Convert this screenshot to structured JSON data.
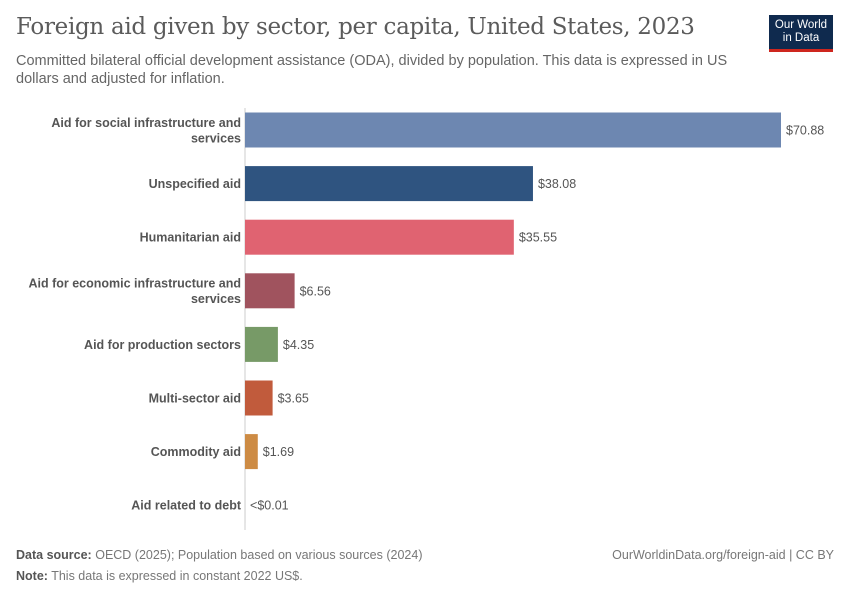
{
  "title": "Foreign aid given by sector, per capita, United States, 2023",
  "subtitle": "Committed bilateral official development assistance (ODA), divided by population. This data is expressed in US dollars and adjusted for inflation.",
  "logo": {
    "line1": "Our World",
    "line2": "in Data",
    "bg": "#0f2a4e",
    "accent": "#ce261e"
  },
  "footer": {
    "source_label": "Data source:",
    "source_text": "OECD (2025); Population based on various sources (2024)",
    "note_label": "Note:",
    "note_text": "This data is expressed in constant 2022 US$.",
    "url": "OurWorldinData.org/foreign-aid | CC BY"
  },
  "chart_data": {
    "type": "bar",
    "orientation": "horizontal",
    "categories": [
      [
        "Aid for social infrastructure and",
        "services"
      ],
      [
        "Unspecified aid"
      ],
      [
        "Humanitarian aid"
      ],
      [
        "Aid for economic infrastructure and",
        "services"
      ],
      [
        "Aid for production sectors"
      ],
      [
        "Multi-sector aid"
      ],
      [
        "Commodity aid"
      ],
      [
        "Aid related to debt"
      ]
    ],
    "values": [
      70.88,
      38.08,
      35.55,
      6.56,
      4.35,
      3.65,
      1.69,
      0.005
    ],
    "value_labels": [
      "$70.88",
      "$38.08",
      "$35.55",
      "$6.56",
      "$4.35",
      "$3.65",
      "$1.69",
      "<$0.01"
    ],
    "colors": [
      "#6d87b1",
      "#2f5480",
      "#e06371",
      "#a0535e",
      "#779a67",
      "#c15b3c",
      "#cd8b44",
      "#999999"
    ],
    "xlim": [
      0,
      70.88
    ],
    "grid": false,
    "legend": "none"
  }
}
